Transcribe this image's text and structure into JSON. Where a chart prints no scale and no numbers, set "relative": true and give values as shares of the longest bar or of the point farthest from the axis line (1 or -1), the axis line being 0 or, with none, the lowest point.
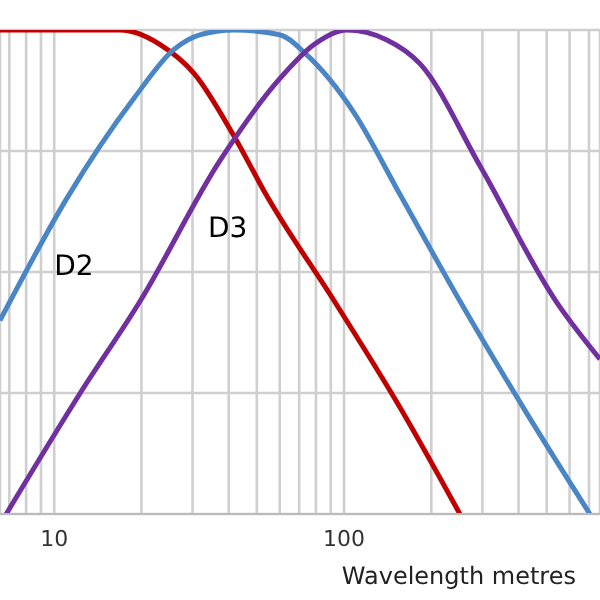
{
  "chart_data": {
    "type": "line",
    "xlabel": "Wavelength metres",
    "relative": true,
    "log": "x",
    "grid": true,
    "legend": false,
    "marker": "none",
    "line_style": "solid",
    "xlim": [
      6.5,
      764
    ],
    "xticks": [
      {
        "value": 7,
        "label": null
      },
      {
        "value": 8,
        "label": null
      },
      {
        "value": 9,
        "label": null
      },
      10,
      {
        "value": 20,
        "label": null
      },
      {
        "value": 30,
        "label": null
      },
      {
        "value": 40,
        "label": null
      },
      {
        "value": 50,
        "label": null
      },
      {
        "value": 60,
        "label": null
      },
      {
        "value": 70,
        "label": null
      },
      {
        "value": 80,
        "label": null
      },
      {
        "value": 90,
        "label": null
      },
      100,
      {
        "value": 200,
        "label": null
      },
      {
        "value": 300,
        "label": null
      },
      {
        "value": 400,
        "label": null
      },
      {
        "value": 500,
        "label": null
      },
      {
        "value": 600,
        "label": null
      },
      {
        "value": 700,
        "label": null
      }
    ],
    "series": [
      {
        "color": "#c00000",
        "x": [
          6.5,
          16.9,
          23.2,
          30.4,
          41.8,
          53.8,
          92.5,
          156,
          251
        ],
        "values": [
          1,
          1,
          0.97,
          0.91,
          0.78,
          0.66,
          0.44,
          0.22,
          0
        ]
      },
      {
        "name": "D2",
        "color": "#4a86c5",
        "x": [
          6.5,
          7.05,
          11.0,
          18.9,
          25.9,
          31.8,
          41.8,
          60.1,
          73.9,
          108,
          156,
          251,
          425,
          705
        ],
        "values": [
          0.4,
          0.44,
          0.65,
          0.86,
          0.96,
          0.99,
          1,
          0.99,
          0.95,
          0.83,
          0.66,
          0.44,
          0.21,
          0
        ]
      },
      {
        "name": "D3",
        "color": "#7030a0",
        "x": [
          6.83,
          12.3,
          19.8,
          37.3,
          60.1,
          78.8,
          102,
          140,
          183,
          294,
          538,
          764
        ],
        "values": [
          0,
          0.25,
          0.44,
          0.73,
          0.9,
          0.97,
          1,
          0.98,
          0.93,
          0.72,
          0.44,
          0.32
        ]
      }
    ]
  }
}
